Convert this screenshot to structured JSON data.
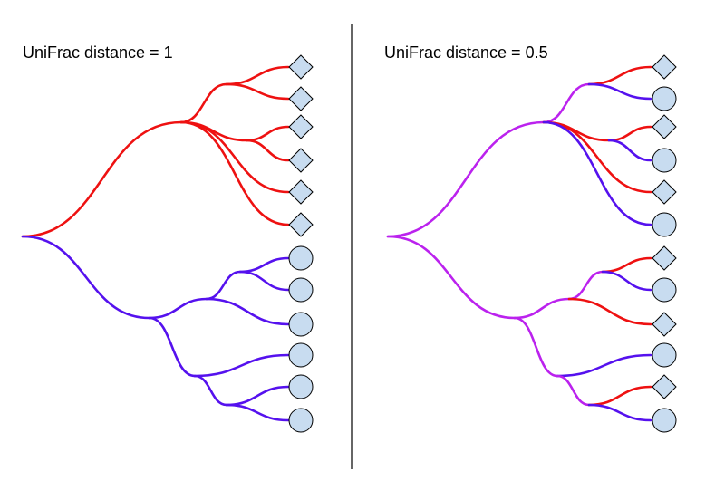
{
  "colors": {
    "background": "#ffffff",
    "red": "#ee1111",
    "blue": "#5511ee",
    "purple": "#bb22ee",
    "leaf_fill": "#c8dcf0",
    "leaf_stroke": "#000000",
    "divider": "#000000"
  },
  "panels": [
    {
      "title": "UniFrac distance = 1",
      "root_color": "purple",
      "top_clade": {
        "color": "red",
        "leaves": [
          "diamond",
          "diamond",
          "diamond",
          "diamond",
          "diamond",
          "diamond"
        ]
      },
      "bottom_clade": {
        "color": "blue",
        "leaves": [
          "circle",
          "circle",
          "circle",
          "circle",
          "circle",
          "circle"
        ]
      }
    },
    {
      "title": "UniFrac distance = 0.5",
      "root_color": "purple",
      "top_clade": {
        "color": "purple",
        "leaves": [
          "diamond",
          "circle",
          "diamond",
          "circle",
          "diamond",
          "circle"
        ]
      },
      "bottom_clade": {
        "color": "purple",
        "leaves": [
          "diamond",
          "circle",
          "diamond",
          "circle",
          "diamond",
          "circle"
        ]
      }
    }
  ]
}
